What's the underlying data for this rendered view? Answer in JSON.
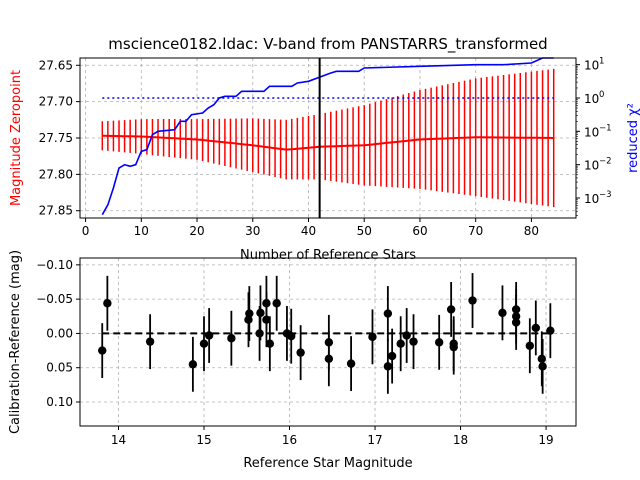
{
  "chart_data": [
    {
      "type": "line",
      "title": "mscience0182.ldac: V-band from PANSTARRS_transformed",
      "xlabel": "Number of Reference Stars",
      "ylabel": "Magnitude Zeropoint",
      "ylabel_right": "reduced χ²",
      "xlim": [
        -1,
        88
      ],
      "ylim": [
        27.86,
        27.64
      ],
      "ylim_right_log10": [
        -3.6,
        1.2
      ],
      "x_ticks": [
        0,
        10,
        20,
        30,
        40,
        50,
        60,
        70,
        80
      ],
      "y_ticks": [
        27.65,
        27.7,
        27.75,
        27.8,
        27.85
      ],
      "y_tick_labels": [
        "27.65",
        "27.70",
        "27.75",
        "27.80",
        "27.85"
      ],
      "y_right_ticks": [
        1,
        0,
        -1,
        -2,
        -3
      ],
      "y_right_tick_labels": [
        "10",
        "10",
        "10",
        "10",
        "10"
      ],
      "y_right_tick_exponents": [
        "1",
        "0",
        "−1",
        "−2",
        "−3"
      ],
      "grid": true,
      "vline_x": 42,
      "hline_chi2": 1,
      "colors": {
        "zeropoint": "#ff0000",
        "chi2": "#0000ff",
        "vline": "#000000"
      },
      "zeropoint": {
        "n_start": 3,
        "n_end": 84,
        "anchors": [
          [
            3,
            27.747
          ],
          [
            10,
            27.748
          ],
          [
            20,
            27.752
          ],
          [
            30,
            27.76
          ],
          [
            36,
            27.766
          ],
          [
            42,
            27.762
          ],
          [
            50,
            27.76
          ],
          [
            60,
            27.752
          ],
          [
            70,
            27.749
          ],
          [
            84,
            27.75
          ]
        ],
        "err": [
          [
            3,
            0.02
          ],
          [
            12,
            0.025
          ],
          [
            20,
            0.028
          ],
          [
            30,
            0.037
          ],
          [
            42,
            0.045
          ],
          [
            60,
            0.068
          ],
          [
            70,
            0.081
          ],
          [
            84,
            0.095
          ]
        ]
      },
      "chi2_log10": [
        [
          3,
          -3.5
        ],
        [
          4,
          -3.2
        ],
        [
          5,
          -2.7
        ],
        [
          6,
          -2.1
        ],
        [
          7,
          -2.0
        ],
        [
          8,
          -2.05
        ],
        [
          9,
          -2.0
        ],
        [
          10,
          -1.6
        ],
        [
          11,
          -1.55
        ],
        [
          12,
          -1.1
        ],
        [
          13,
          -1.0
        ],
        [
          16,
          -0.95
        ],
        [
          17,
          -0.7
        ],
        [
          18,
          -0.7
        ],
        [
          19,
          -0.5
        ],
        [
          21,
          -0.45
        ],
        [
          22,
          -0.3
        ],
        [
          23,
          -0.2
        ],
        [
          24,
          0.0
        ],
        [
          25,
          0.05
        ],
        [
          27,
          0.05
        ],
        [
          28,
          0.2
        ],
        [
          32,
          0.2
        ],
        [
          33,
          0.35
        ],
        [
          37,
          0.35
        ],
        [
          38,
          0.45
        ],
        [
          40,
          0.5
        ],
        [
          44,
          0.75
        ],
        [
          45,
          0.8
        ],
        [
          49,
          0.8
        ],
        [
          50,
          0.9
        ],
        [
          60,
          0.95
        ],
        [
          70,
          1.0
        ],
        [
          75,
          1.0
        ],
        [
          80,
          1.05
        ],
        [
          82,
          1.2
        ],
        [
          84,
          1.2
        ]
      ]
    },
    {
      "type": "scatter",
      "xlabel": "Reference Star Magnitude",
      "ylabel": "Calibration-Reference (mag)",
      "xlim": [
        13.55,
        19.35
      ],
      "ylim": [
        0.135,
        -0.11
      ],
      "x_ticks": [
        14,
        15,
        16,
        17,
        18,
        19
      ],
      "y_ticks": [
        -0.1,
        -0.05,
        0.0,
        0.05,
        0.1
      ],
      "y_tick_labels": [
        "−0.10",
        "−0.05",
        "0.00",
        "0.05",
        "0.10"
      ],
      "grid": true,
      "hline_y": 0,
      "points": [
        {
          "x": 13.81,
          "y": 0.025,
          "err": 0.04
        },
        {
          "x": 13.87,
          "y": -0.044,
          "err": 0.04
        },
        {
          "x": 14.37,
          "y": 0.012,
          "err": 0.04
        },
        {
          "x": 14.87,
          "y": 0.045,
          "err": 0.04
        },
        {
          "x": 15.0,
          "y": 0.015,
          "err": 0.04
        },
        {
          "x": 15.06,
          "y": 0.003,
          "err": 0.04
        },
        {
          "x": 15.32,
          "y": 0.007,
          "err": 0.04
        },
        {
          "x": 15.52,
          "y": -0.02,
          "err": 0.04
        },
        {
          "x": 15.53,
          "y": -0.029,
          "err": 0.04
        },
        {
          "x": 15.65,
          "y": 0.0,
          "err": 0.04
        },
        {
          "x": 15.66,
          "y": -0.03,
          "err": 0.04
        },
        {
          "x": 15.73,
          "y": -0.044,
          "err": 0.04
        },
        {
          "x": 15.73,
          "y": -0.02,
          "err": 0.04
        },
        {
          "x": 15.77,
          "y": 0.015,
          "err": 0.04
        },
        {
          "x": 15.85,
          "y": -0.044,
          "err": 0.04
        },
        {
          "x": 15.97,
          "y": 0.0,
          "err": 0.04
        },
        {
          "x": 16.02,
          "y": 0.004,
          "err": 0.04
        },
        {
          "x": 16.13,
          "y": 0.028,
          "err": 0.04
        },
        {
          "x": 16.46,
          "y": 0.037,
          "err": 0.04
        },
        {
          "x": 16.46,
          "y": 0.013,
          "err": 0.04
        },
        {
          "x": 16.72,
          "y": 0.044,
          "err": 0.04
        },
        {
          "x": 16.97,
          "y": 0.005,
          "err": 0.04
        },
        {
          "x": 17.15,
          "y": 0.048,
          "err": 0.04
        },
        {
          "x": 17.15,
          "y": -0.029,
          "err": 0.04
        },
        {
          "x": 17.2,
          "y": 0.033,
          "err": 0.04
        },
        {
          "x": 17.3,
          "y": 0.015,
          "err": 0.04
        },
        {
          "x": 17.37,
          "y": 0.003,
          "err": 0.04
        },
        {
          "x": 17.45,
          "y": 0.012,
          "err": 0.04
        },
        {
          "x": 17.75,
          "y": 0.013,
          "err": 0.04
        },
        {
          "x": 17.89,
          "y": -0.035,
          "err": 0.04
        },
        {
          "x": 17.92,
          "y": 0.015,
          "err": 0.04
        },
        {
          "x": 17.92,
          "y": 0.02,
          "err": 0.04
        },
        {
          "x": 18.14,
          "y": -0.048,
          "err": 0.04
        },
        {
          "x": 18.49,
          "y": -0.03,
          "err": 0.04
        },
        {
          "x": 18.65,
          "y": -0.035,
          "err": 0.04
        },
        {
          "x": 18.65,
          "y": -0.025,
          "err": 0.04
        },
        {
          "x": 18.65,
          "y": -0.016,
          "err": 0.04
        },
        {
          "x": 18.81,
          "y": 0.018,
          "err": 0.04
        },
        {
          "x": 18.88,
          "y": -0.008,
          "err": 0.04
        },
        {
          "x": 18.95,
          "y": 0.037,
          "err": 0.04
        },
        {
          "x": 18.96,
          "y": 0.048,
          "err": 0.04
        },
        {
          "x": 19.05,
          "y": -0.004,
          "err": 0.04
        }
      ]
    }
  ]
}
